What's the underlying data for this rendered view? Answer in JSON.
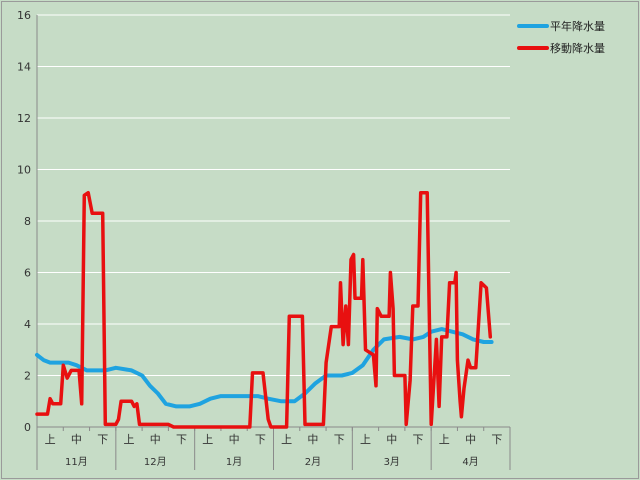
{
  "chart_data": {
    "type": "line",
    "ylim": [
      0,
      16
    ],
    "yticks": [
      0,
      2,
      4,
      6,
      8,
      10,
      12,
      14,
      16
    ],
    "months": [
      "11月",
      "12月",
      "1月",
      "2月",
      "3月",
      "4月"
    ],
    "dekads": [
      "上",
      "中",
      "下"
    ],
    "grid": "horizontal",
    "legend_position": "top-right",
    "colors": {
      "background": "#c6dcc6",
      "grid": "#ffffff",
      "axis": "#8a8a8a"
    },
    "x_note": "x in dekad units: 0 = start of 11月上, 3 = start of 12月上, 18 = end of 4月下",
    "series": [
      {
        "name": "平年降水量",
        "color": "#1fa3e0",
        "points": [
          [
            0,
            2.8
          ],
          [
            0.25,
            2.6
          ],
          [
            0.5,
            2.5
          ],
          [
            1.2,
            2.5
          ],
          [
            1.5,
            2.4
          ],
          [
            1.9,
            2.2
          ],
          [
            2.6,
            2.2
          ],
          [
            3.0,
            2.3
          ],
          [
            3.6,
            2.2
          ],
          [
            4.0,
            2.0
          ],
          [
            4.3,
            1.6
          ],
          [
            4.6,
            1.3
          ],
          [
            4.9,
            0.9
          ],
          [
            5.3,
            0.8
          ],
          [
            5.8,
            0.8
          ],
          [
            6.2,
            0.9
          ],
          [
            6.6,
            1.1
          ],
          [
            7.0,
            1.2
          ],
          [
            7.6,
            1.2
          ],
          [
            8.4,
            1.2
          ],
          [
            8.8,
            1.1
          ],
          [
            9.3,
            1.0
          ],
          [
            9.8,
            1.0
          ],
          [
            10.2,
            1.3
          ],
          [
            10.6,
            1.7
          ],
          [
            11.0,
            2.0
          ],
          [
            11.6,
            2.0
          ],
          [
            12.0,
            2.1
          ],
          [
            12.4,
            2.4
          ],
          [
            12.8,
            3.0
          ],
          [
            13.2,
            3.4
          ],
          [
            13.8,
            3.5
          ],
          [
            14.3,
            3.4
          ],
          [
            14.7,
            3.5
          ],
          [
            15.0,
            3.7
          ],
          [
            15.4,
            3.8
          ],
          [
            15.8,
            3.7
          ],
          [
            16.2,
            3.6
          ],
          [
            16.6,
            3.4
          ],
          [
            17.0,
            3.3
          ],
          [
            17.3,
            3.3
          ]
        ]
      },
      {
        "name": "移動降水量",
        "color": "#e81010",
        "points": [
          [
            0,
            0.5
          ],
          [
            0.4,
            0.5
          ],
          [
            0.5,
            1.1
          ],
          [
            0.6,
            0.9
          ],
          [
            0.9,
            0.9
          ],
          [
            1.0,
            2.4
          ],
          [
            1.15,
            1.9
          ],
          [
            1.3,
            2.2
          ],
          [
            1.6,
            2.2
          ],
          [
            1.7,
            0.9
          ],
          [
            1.8,
            9.0
          ],
          [
            1.95,
            9.1
          ],
          [
            2.1,
            8.3
          ],
          [
            2.5,
            8.3
          ],
          [
            2.6,
            0.1
          ],
          [
            3.0,
            0.1
          ],
          [
            3.1,
            0.3
          ],
          [
            3.2,
            1.0
          ],
          [
            3.6,
            1.0
          ],
          [
            3.7,
            0.8
          ],
          [
            3.8,
            0.9
          ],
          [
            3.9,
            0.1
          ],
          [
            4.4,
            0.1
          ],
          [
            5.0,
            0.1
          ],
          [
            5.2,
            0.0
          ],
          [
            6.0,
            0.0
          ],
          [
            7.0,
            0.0
          ],
          [
            8.1,
            0.0
          ],
          [
            8.2,
            2.1
          ],
          [
            8.6,
            2.1
          ],
          [
            8.8,
            0.3
          ],
          [
            8.9,
            0.0
          ],
          [
            9.5,
            0.0
          ],
          [
            9.6,
            4.3
          ],
          [
            10.1,
            4.3
          ],
          [
            10.2,
            0.1
          ],
          [
            10.5,
            0.1
          ],
          [
            10.9,
            0.1
          ],
          [
            11.0,
            2.5
          ],
          [
            11.2,
            3.9
          ],
          [
            11.5,
            3.9
          ],
          [
            11.55,
            5.6
          ],
          [
            11.65,
            3.2
          ],
          [
            11.75,
            4.7
          ],
          [
            11.85,
            3.2
          ],
          [
            11.95,
            6.5
          ],
          [
            12.05,
            6.7
          ],
          [
            12.1,
            5.0
          ],
          [
            12.35,
            5.0
          ],
          [
            12.4,
            6.5
          ],
          [
            12.5,
            3.0
          ],
          [
            12.8,
            2.8
          ],
          [
            12.9,
            1.6
          ],
          [
            12.95,
            4.6
          ],
          [
            13.1,
            4.3
          ],
          [
            13.4,
            4.3
          ],
          [
            13.45,
            6.0
          ],
          [
            13.55,
            4.6
          ],
          [
            13.6,
            2.0
          ],
          [
            14.0,
            2.0
          ],
          [
            14.05,
            0.1
          ],
          [
            14.2,
            1.8
          ],
          [
            14.3,
            4.7
          ],
          [
            14.5,
            4.7
          ],
          [
            14.6,
            9.1
          ],
          [
            14.85,
            9.1
          ],
          [
            14.95,
            3.0
          ],
          [
            15.0,
            0.1
          ],
          [
            15.2,
            3.4
          ],
          [
            15.3,
            0.8
          ],
          [
            15.4,
            3.5
          ],
          [
            15.6,
            3.5
          ],
          [
            15.7,
            5.6
          ],
          [
            15.9,
            5.6
          ],
          [
            15.95,
            6.0
          ],
          [
            16.0,
            2.6
          ],
          [
            16.1,
            1.0
          ],
          [
            16.15,
            0.4
          ],
          [
            16.25,
            1.5
          ],
          [
            16.4,
            2.6
          ],
          [
            16.5,
            2.3
          ],
          [
            16.7,
            2.3
          ],
          [
            16.9,
            5.6
          ],
          [
            17.1,
            5.4
          ],
          [
            17.25,
            3.5
          ]
        ]
      }
    ]
  }
}
